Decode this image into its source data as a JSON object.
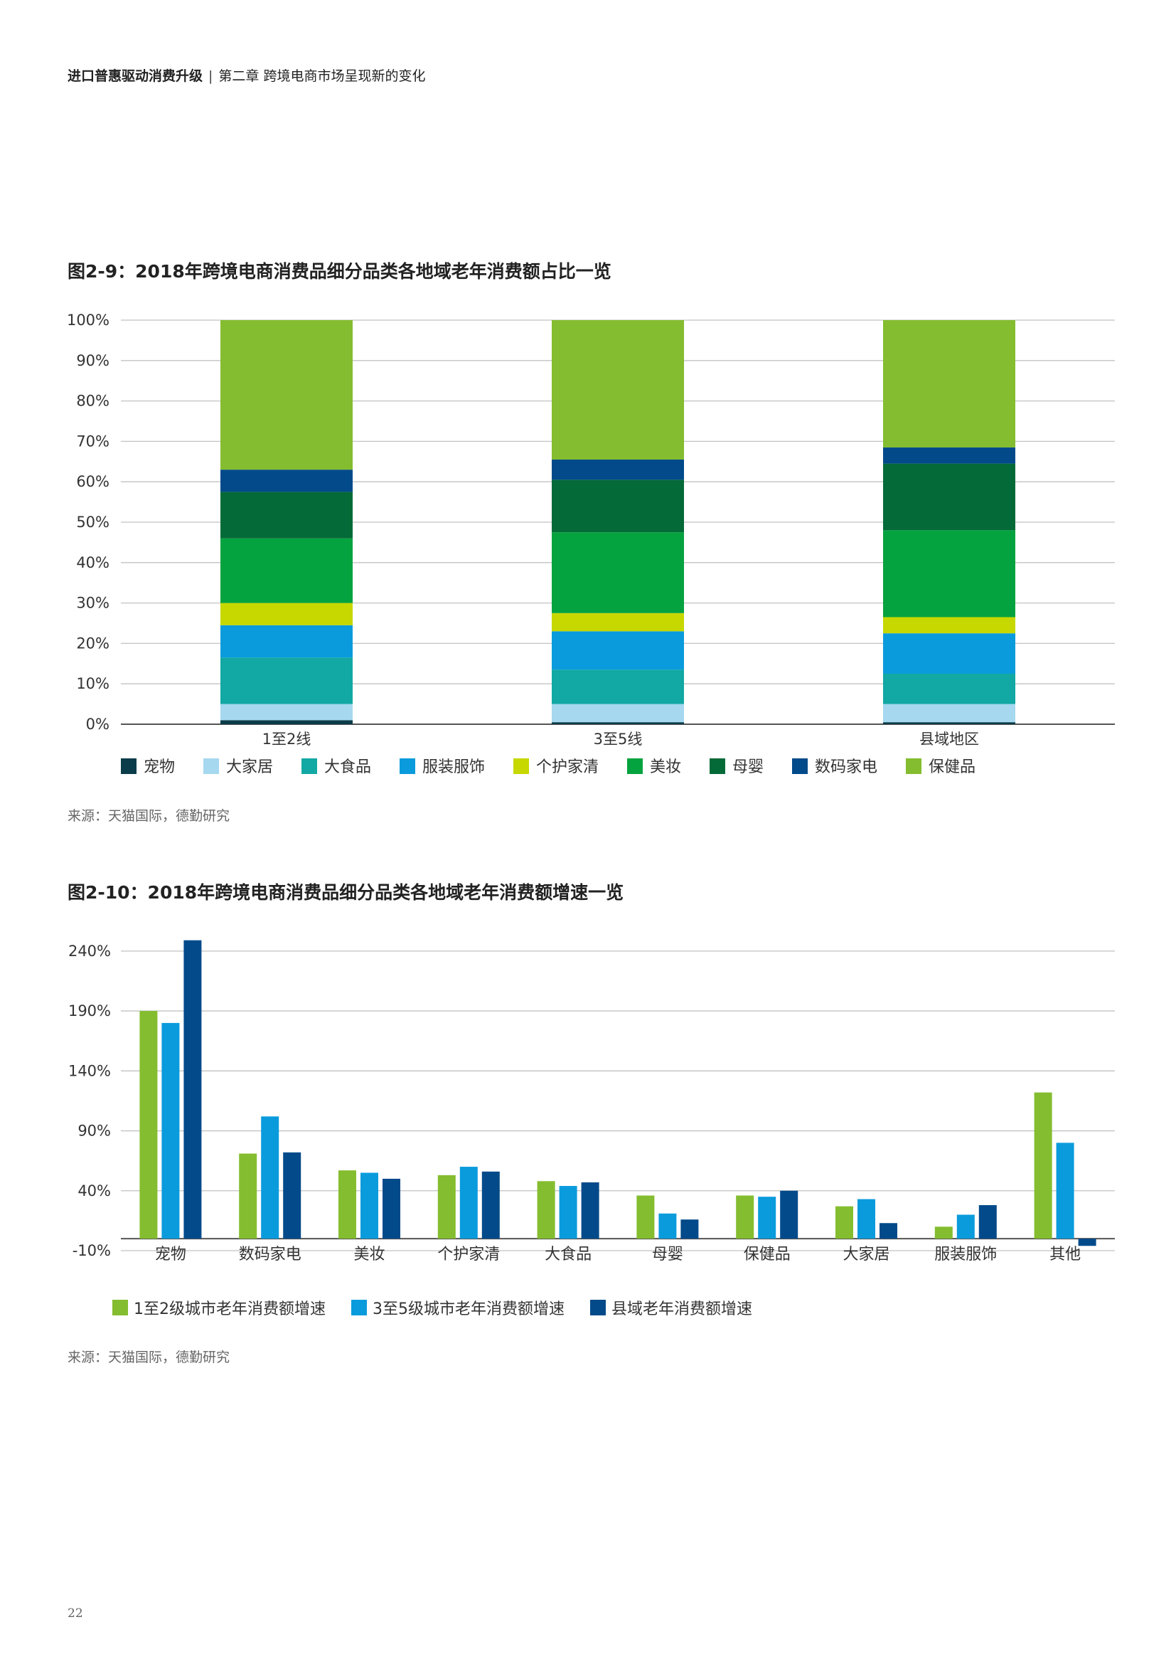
{
  "header": {
    "report_title": "进口普惠驱动消费升级",
    "divider": "|",
    "chapter": "第二章 跨境电商市场呈现新的变化"
  },
  "figure1": {
    "title": "图2-9：2018年跨境电商消费品细分品类各地域老年消费额占比一览",
    "source": "来源：天猫国际，德勤研究"
  },
  "figure2": {
    "title": "图2-10：2018年跨境电商消费品细分品类各地域老年消费额增速一览",
    "source": "来源：天猫国际，德勤研究"
  },
  "page_number": "22",
  "chart_data": [
    {
      "type": "bar",
      "stacked": true,
      "categories": [
        "1至2线",
        "3至5线",
        "县域地区"
      ],
      "ylim": [
        0,
        100
      ],
      "yticks": [
        0,
        10,
        20,
        30,
        40,
        50,
        60,
        70,
        80,
        90,
        100
      ],
      "ytick_labels": [
        "0%",
        "10%",
        "20%",
        "30%",
        "40%",
        "50%",
        "60%",
        "70%",
        "80%",
        "90%",
        "100%"
      ],
      "grid": true,
      "legend_position": "bottom",
      "series": [
        {
          "name": "宠物",
          "color": "#0b3c49",
          "values": [
            1,
            0.5,
            0.5
          ]
        },
        {
          "name": "大家居",
          "color": "#a6d8f0",
          "values": [
            4,
            4.5,
            4.5
          ]
        },
        {
          "name": "大食品",
          "color": "#12a8a3",
          "values": [
            11.5,
            8.5,
            7.5
          ]
        },
        {
          "name": "服装服饰",
          "color": "#0a9bdc",
          "values": [
            8,
            9.5,
            10
          ]
        },
        {
          "name": "个护家清",
          "color": "#c6d800",
          "values": [
            5.5,
            4.5,
            4
          ]
        },
        {
          "name": "美妆",
          "color": "#05a33f",
          "values": [
            16,
            20,
            21.5
          ]
        },
        {
          "name": "母婴",
          "color": "#046a38",
          "values": [
            11.5,
            13,
            16.5
          ]
        },
        {
          "name": "数码家电",
          "color": "#024a8a",
          "values": [
            5.5,
            5,
            4
          ]
        },
        {
          "name": "保健品",
          "color": "#84bd2f",
          "values": [
            37,
            34.5,
            31.5
          ]
        }
      ]
    },
    {
      "type": "bar",
      "categories": [
        "宠物",
        "数码家电",
        "美妆",
        "个护家清",
        "大食品",
        "母婴",
        "保健品",
        "大家居",
        "服装服饰",
        "其他"
      ],
      "ylim": [
        -10,
        250
      ],
      "yticks": [
        -10,
        40,
        90,
        140,
        190,
        240
      ],
      "ytick_labels": [
        "-10%",
        "40%",
        "90%",
        "140%",
        "190%",
        "240%"
      ],
      "grid": true,
      "legend_position": "bottom",
      "series": [
        {
          "name": "1至2级城市老年消费额增速",
          "color": "#84bd2f",
          "values": [
            190,
            71,
            57,
            53,
            48,
            36,
            36,
            27,
            10,
            122
          ]
        },
        {
          "name": "3至5级城市老年消费额增速",
          "color": "#0a9bdc",
          "values": [
            180,
            102,
            55,
            60,
            44,
            21,
            35,
            33,
            20,
            80
          ]
        },
        {
          "name": "县域老年消费额增速",
          "color": "#024a8a",
          "values": [
            249,
            72,
            50,
            56,
            47,
            16,
            40,
            13,
            28,
            -6
          ]
        }
      ]
    }
  ]
}
